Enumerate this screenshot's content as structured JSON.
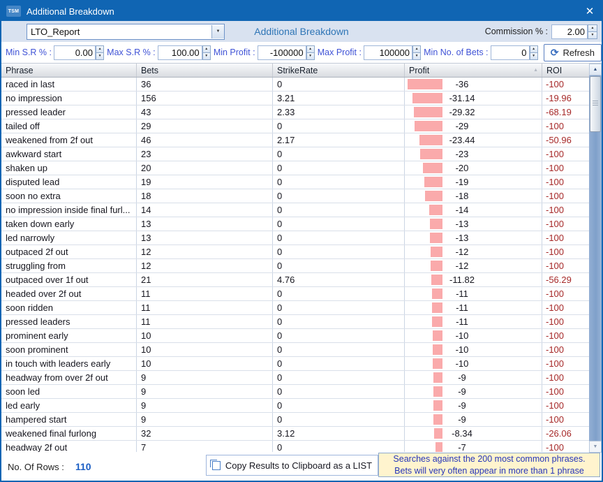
{
  "window": {
    "app_badge": "TSM",
    "title": "Additional Breakdown"
  },
  "icons": {
    "close": "✕",
    "dropdown": "▼",
    "spinner_up": "▲",
    "spinner_down": "▼",
    "refresh": "⟳",
    "sort_asc": "▲",
    "scroll_up": "▲",
    "scroll_down": "▼"
  },
  "toolbar": {
    "report_select_value": "LTO_Report",
    "heading": "Additional Breakdown",
    "commission_label": "Commission % :",
    "commission_value": "2.00"
  },
  "filters": {
    "min_sr_label": "Min S.R % :",
    "min_sr_value": "0.00",
    "max_sr_label": "Max S.R % :",
    "max_sr_value": "100.00",
    "min_profit_label": "Min Profit :",
    "min_profit_value": "-100000",
    "max_profit_label": "Max Profit :",
    "max_profit_value": "100000",
    "min_bets_label": "Min No. of Bets :",
    "min_bets_value": "0",
    "refresh_label": "Refresh"
  },
  "table": {
    "columns": [
      "Phrase",
      "Bets",
      "StrikeRate",
      "Profit",
      "ROI"
    ],
    "sort_column": "Profit",
    "profit_bar_color": "#FAAAAB",
    "profit_bar_max_abs": 36,
    "rows": [
      {
        "phrase": "raced in last",
        "bets": "36",
        "strike_rate": "0",
        "profit": "-36",
        "roi": "-100"
      },
      {
        "phrase": "no impression",
        "bets": "156",
        "strike_rate": "3.21",
        "profit": "-31.14",
        "roi": "-19.96"
      },
      {
        "phrase": "pressed leader",
        "bets": "43",
        "strike_rate": "2.33",
        "profit": "-29.32",
        "roi": "-68.19"
      },
      {
        "phrase": "tailed off",
        "bets": "29",
        "strike_rate": "0",
        "profit": "-29",
        "roi": "-100"
      },
      {
        "phrase": "weakened from 2f out",
        "bets": "46",
        "strike_rate": "2.17",
        "profit": "-23.44",
        "roi": "-50.96"
      },
      {
        "phrase": "awkward start",
        "bets": "23",
        "strike_rate": "0",
        "profit": "-23",
        "roi": "-100"
      },
      {
        "phrase": "shaken up",
        "bets": "20",
        "strike_rate": "0",
        "profit": "-20",
        "roi": "-100"
      },
      {
        "phrase": "disputed lead",
        "bets": "19",
        "strike_rate": "0",
        "profit": "-19",
        "roi": "-100"
      },
      {
        "phrase": "soon no extra",
        "bets": "18",
        "strike_rate": "0",
        "profit": "-18",
        "roi": "-100"
      },
      {
        "phrase": "no impression inside final furl...",
        "bets": "14",
        "strike_rate": "0",
        "profit": "-14",
        "roi": "-100"
      },
      {
        "phrase": "taken down early",
        "bets": "13",
        "strike_rate": "0",
        "profit": "-13",
        "roi": "-100"
      },
      {
        "phrase": "led narrowly",
        "bets": "13",
        "strike_rate": "0",
        "profit": "-13",
        "roi": "-100"
      },
      {
        "phrase": "outpaced 2f out",
        "bets": "12",
        "strike_rate": "0",
        "profit": "-12",
        "roi": "-100"
      },
      {
        "phrase": "struggling from",
        "bets": "12",
        "strike_rate": "0",
        "profit": "-12",
        "roi": "-100"
      },
      {
        "phrase": "outpaced over 1f out",
        "bets": "21",
        "strike_rate": "4.76",
        "profit": "-11.82",
        "roi": "-56.29"
      },
      {
        "phrase": "headed over 2f out",
        "bets": "11",
        "strike_rate": "0",
        "profit": "-11",
        "roi": "-100"
      },
      {
        "phrase": "soon ridden",
        "bets": "11",
        "strike_rate": "0",
        "profit": "-11",
        "roi": "-100"
      },
      {
        "phrase": "pressed leaders",
        "bets": "11",
        "strike_rate": "0",
        "profit": "-11",
        "roi": "-100"
      },
      {
        "phrase": "prominent early",
        "bets": "10",
        "strike_rate": "0",
        "profit": "-10",
        "roi": "-100"
      },
      {
        "phrase": "soon prominent",
        "bets": "10",
        "strike_rate": "0",
        "profit": "-10",
        "roi": "-100"
      },
      {
        "phrase": "in touch with leaders early",
        "bets": "10",
        "strike_rate": "0",
        "profit": "-10",
        "roi": "-100"
      },
      {
        "phrase": "headway from over 2f out",
        "bets": "9",
        "strike_rate": "0",
        "profit": "-9",
        "roi": "-100"
      },
      {
        "phrase": "soon led",
        "bets": "9",
        "strike_rate": "0",
        "profit": "-9",
        "roi": "-100"
      },
      {
        "phrase": "led early",
        "bets": "9",
        "strike_rate": "0",
        "profit": "-9",
        "roi": "-100"
      },
      {
        "phrase": "hampered start",
        "bets": "9",
        "strike_rate": "0",
        "profit": "-9",
        "roi": "-100"
      },
      {
        "phrase": "weakened final furlong",
        "bets": "32",
        "strike_rate": "3.12",
        "profit": "-8.34",
        "roi": "-26.06"
      },
      {
        "phrase": "headway 2f out",
        "bets": "7",
        "strike_rate": "0",
        "profit": "-7",
        "roi": "-100"
      }
    ]
  },
  "footer": {
    "rows_label": "No. Of Rows :",
    "rows_value": "110",
    "copy_button_label": "Copy Results to Clipboard as a LIST",
    "note": "Searches against the 200 most common phrases. Bets will very often appear in more than 1 phrase"
  }
}
